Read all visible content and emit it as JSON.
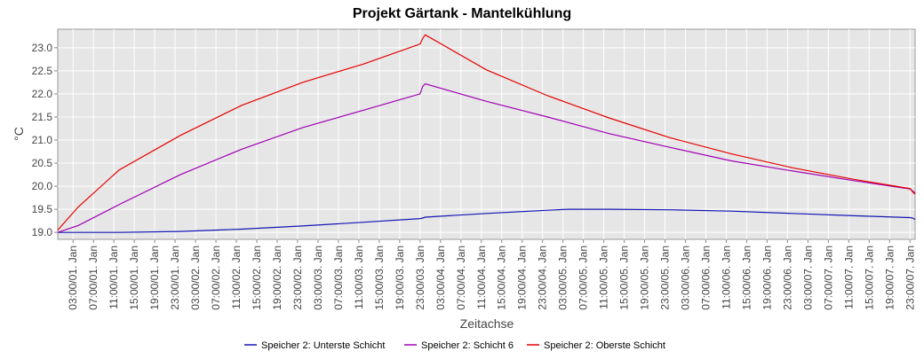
{
  "chart_data": {
    "type": "line",
    "title": "Projekt Gärtank - Mantelkühlung",
    "xlabel": "Zeitachse",
    "ylabel": "°C",
    "ylim": [
      18.85,
      23.4
    ],
    "yticks": [
      "19.0",
      "19.5",
      "20.0",
      "20.5",
      "21.0",
      "21.5",
      "22.0",
      "22.5",
      "23.0"
    ],
    "xticks": [
      "03:00/01. Jan",
      "07:00/01. Jan",
      "11:00/01. Jan",
      "15:00/01. Jan",
      "19:00/01. Jan",
      "23:00/01. Jan",
      "03:00/02. Jan",
      "07:00/02. Jan",
      "11:00/02. Jan",
      "15:00/02. Jan",
      "19:00/02. Jan",
      "23:00/02. Jan",
      "03:00/03. Jan",
      "07:00/03. Jan",
      "11:00/03. Jan",
      "15:00/03. Jan",
      "19:00/03. Jan",
      "23:00/03. Jan",
      "03:00/04. Jan",
      "07:00/04. Jan",
      "11:00/04. Jan",
      "15:00/04. Jan",
      "19:00/04. Jan",
      "23:00/04. Jan",
      "03:00/05. Jan",
      "07:00/05. Jan",
      "11:00/05. Jan",
      "15:00/05. Jan",
      "19:00/05. Jan",
      "23:00/05. Jan",
      "03:00/06. Jan",
      "07:00/06. Jan",
      "11:00/06. Jan",
      "15:00/06. Jan",
      "19:00/06. Jan",
      "23:00/06. Jan",
      "03:00/07. Jan",
      "07:00/07. Jan",
      "11:00/07. Jan",
      "15:00/07. Jan",
      "19:00/07. Jan",
      "23:00/07. Jan"
    ],
    "x": [
      "01. Jan 00:00",
      "01. Jan 04:00",
      "01. Jan 12:00",
      "02. Jan 00:00",
      "02. Jan 12:00",
      "03. Jan 00:00",
      "03. Jan 12:00",
      "03. Jan 23:00",
      "03. Jan 23:30",
      "04. Jan 00:00",
      "04. Jan 12:00",
      "05. Jan 00:00",
      "05. Jan 04:00",
      "05. Jan 12:00",
      "06. Jan 00:00",
      "06. Jan 12:00",
      "07. Jan 00:00",
      "07. Jan 12:00",
      "07. Jan 23:00",
      "07. Jan 23:30",
      "08. Jan 00:00"
    ],
    "series": [
      {
        "name": "Speicher 2: Unterste Schicht",
        "color": "#1414b4",
        "values": [
          19.0,
          19.0,
          19.0,
          19.02,
          19.07,
          19.14,
          19.22,
          19.3,
          19.31,
          19.33,
          19.41,
          19.48,
          19.5,
          19.5,
          19.49,
          19.46,
          19.41,
          19.36,
          19.32,
          19.31,
          19.28
        ]
      },
      {
        "name": "Speicher 2: Schicht 6",
        "color": "#a000b4",
        "values": [
          19.0,
          19.15,
          19.6,
          20.25,
          20.8,
          21.27,
          21.65,
          22.0,
          22.16,
          22.22,
          21.84,
          21.5,
          21.38,
          21.14,
          20.84,
          20.55,
          20.33,
          20.12,
          19.94,
          19.9,
          19.85
        ]
      },
      {
        "name": "Speicher 2: Oberste Schicht",
        "color": "#e60000",
        "values": [
          19.05,
          19.55,
          20.35,
          21.1,
          21.75,
          22.25,
          22.65,
          23.08,
          23.2,
          23.28,
          22.52,
          21.96,
          21.8,
          21.48,
          21.05,
          20.7,
          20.4,
          20.15,
          19.95,
          19.88,
          19.83
        ]
      }
    ],
    "grid": true,
    "legend": "bottom"
  }
}
